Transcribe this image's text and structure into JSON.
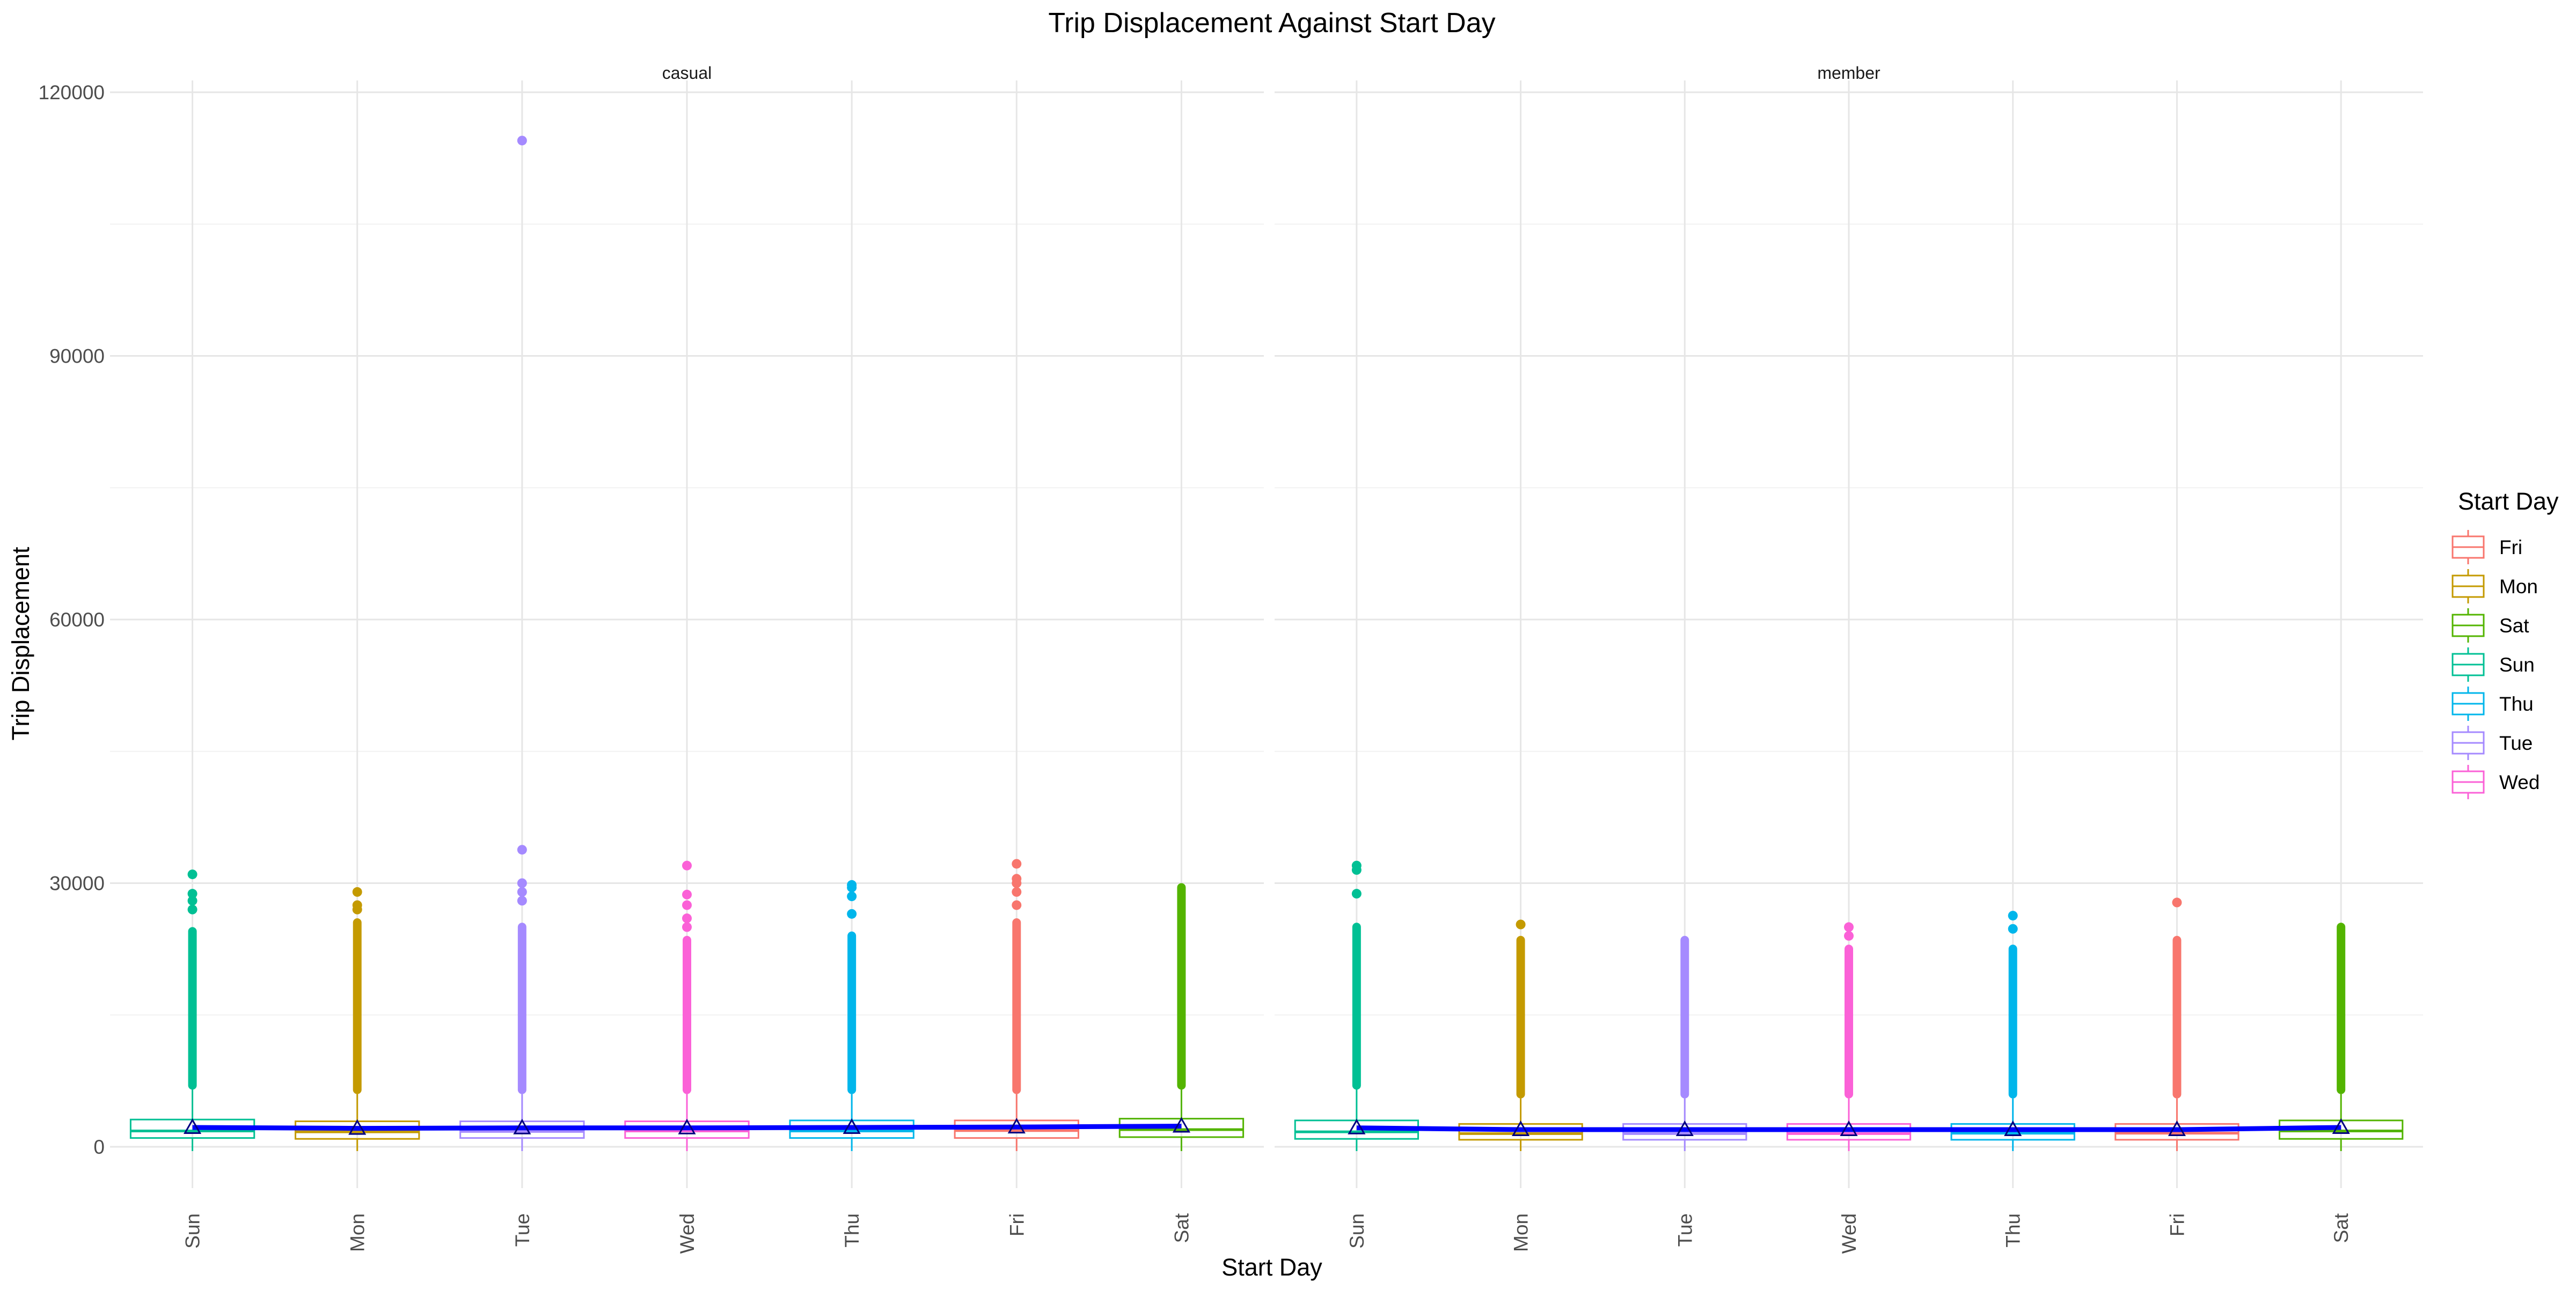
{
  "chart_data": {
    "type": "box",
    "title": "Trip Displacement Against Start Day",
    "xlabel": "Start Day",
    "ylabel": "Trip Displacement",
    "categories": [
      "Sun",
      "Mon",
      "Tue",
      "Wed",
      "Thu",
      "Fri",
      "Sat"
    ],
    "ylim": [
      -5000,
      122000
    ],
    "yticks": [
      0,
      30000,
      60000,
      90000,
      120000
    ],
    "ytick_labels": [
      "0",
      "30000",
      "60000",
      "90000",
      "120000"
    ],
    "grid": true,
    "legend": {
      "title": "Start Day",
      "placement": "right",
      "entries": [
        "Fri",
        "Mon",
        "Sat",
        "Sun",
        "Thu",
        "Tue",
        "Wed"
      ]
    },
    "colors": {
      "Fri": "#F8766D",
      "Mon": "#C49A00",
      "Sat": "#53B400",
      "Sun": "#00C094",
      "Thu": "#00B6EB",
      "Tue": "#A58AFF",
      "Wed": "#FB61D7",
      "mean_line": "#0000FF"
    },
    "facets": [
      {
        "name": "casual",
        "series": [
          {
            "day": "Sun",
            "q1": 1000,
            "median": 1800,
            "q3": 3100,
            "whisker_low": 0,
            "whisker_high": 6500,
            "outlier_dense_max": 25000,
            "outliers": [
              27000,
              28000,
              28800,
              31000
            ],
            "mean": 2200
          },
          {
            "day": "Mon",
            "q1": 900,
            "median": 1700,
            "q3": 2900,
            "whisker_low": 0,
            "whisker_high": 6000,
            "outlier_dense_max": 26000,
            "outliers": [
              27000,
              27500,
              29000
            ],
            "mean": 2100
          },
          {
            "day": "Tue",
            "q1": 1000,
            "median": 1750,
            "q3": 2900,
            "whisker_low": 0,
            "whisker_high": 6000,
            "outlier_dense_max": 25500,
            "outliers": [
              28000,
              29000,
              30000,
              33800,
              114500
            ],
            "mean": 2150
          },
          {
            "day": "Wed",
            "q1": 1000,
            "median": 1800,
            "q3": 2900,
            "whisker_low": 0,
            "whisker_high": 6000,
            "outlier_dense_max": 24000,
            "outliers": [
              25000,
              26000,
              27500,
              28700,
              32000
            ],
            "mean": 2150
          },
          {
            "day": "Thu",
            "q1": 1000,
            "median": 1800,
            "q3": 3000,
            "whisker_low": 0,
            "whisker_high": 6000,
            "outlier_dense_max": 24500,
            "outliers": [
              26500,
              28500,
              29500,
              29800
            ],
            "mean": 2200
          },
          {
            "day": "Fri",
            "q1": 1000,
            "median": 1850,
            "q3": 3000,
            "whisker_low": 0,
            "whisker_high": 6000,
            "outlier_dense_max": 26000,
            "outliers": [
              27500,
              29000,
              30000,
              30500,
              32200
            ],
            "mean": 2250
          },
          {
            "day": "Sat",
            "q1": 1100,
            "median": 1950,
            "q3": 3200,
            "whisker_low": 0,
            "whisker_high": 6500,
            "outlier_dense_max": 30000,
            "outliers": [],
            "mean": 2350
          }
        ]
      },
      {
        "name": "member",
        "series": [
          {
            "day": "Sun",
            "q1": 900,
            "median": 1700,
            "q3": 3000,
            "whisker_low": 0,
            "whisker_high": 6500,
            "outlier_dense_max": 25500,
            "outliers": [
              28800,
              31500,
              32000
            ],
            "mean": 2150
          },
          {
            "day": "Mon",
            "q1": 800,
            "median": 1500,
            "q3": 2600,
            "whisker_low": 0,
            "whisker_high": 5500,
            "outlier_dense_max": 24000,
            "outliers": [
              25300
            ],
            "mean": 1950
          },
          {
            "day": "Tue",
            "q1": 800,
            "median": 1500,
            "q3": 2600,
            "whisker_low": 0,
            "whisker_high": 5500,
            "outlier_dense_max": 24000,
            "outliers": [],
            "mean": 1950
          },
          {
            "day": "Wed",
            "q1": 800,
            "median": 1500,
            "q3": 2600,
            "whisker_low": 0,
            "whisker_high": 5500,
            "outlier_dense_max": 23000,
            "outliers": [
              24000,
              25000
            ],
            "mean": 1950
          },
          {
            "day": "Thu",
            "q1": 800,
            "median": 1550,
            "q3": 2600,
            "whisker_low": 0,
            "whisker_high": 5500,
            "outlier_dense_max": 23000,
            "outliers": [
              24800,
              26300
            ],
            "mean": 1950
          },
          {
            "day": "Fri",
            "q1": 800,
            "median": 1550,
            "q3": 2600,
            "whisker_low": 0,
            "whisker_high": 5500,
            "outlier_dense_max": 24000,
            "outliers": [
              27800
            ],
            "mean": 1950
          },
          {
            "day": "Sat",
            "q1": 900,
            "median": 1800,
            "q3": 3000,
            "whisker_low": 0,
            "whisker_high": 6000,
            "outlier_dense_max": 25500,
            "outliers": [],
            "mean": 2200
          }
        ]
      }
    ]
  }
}
